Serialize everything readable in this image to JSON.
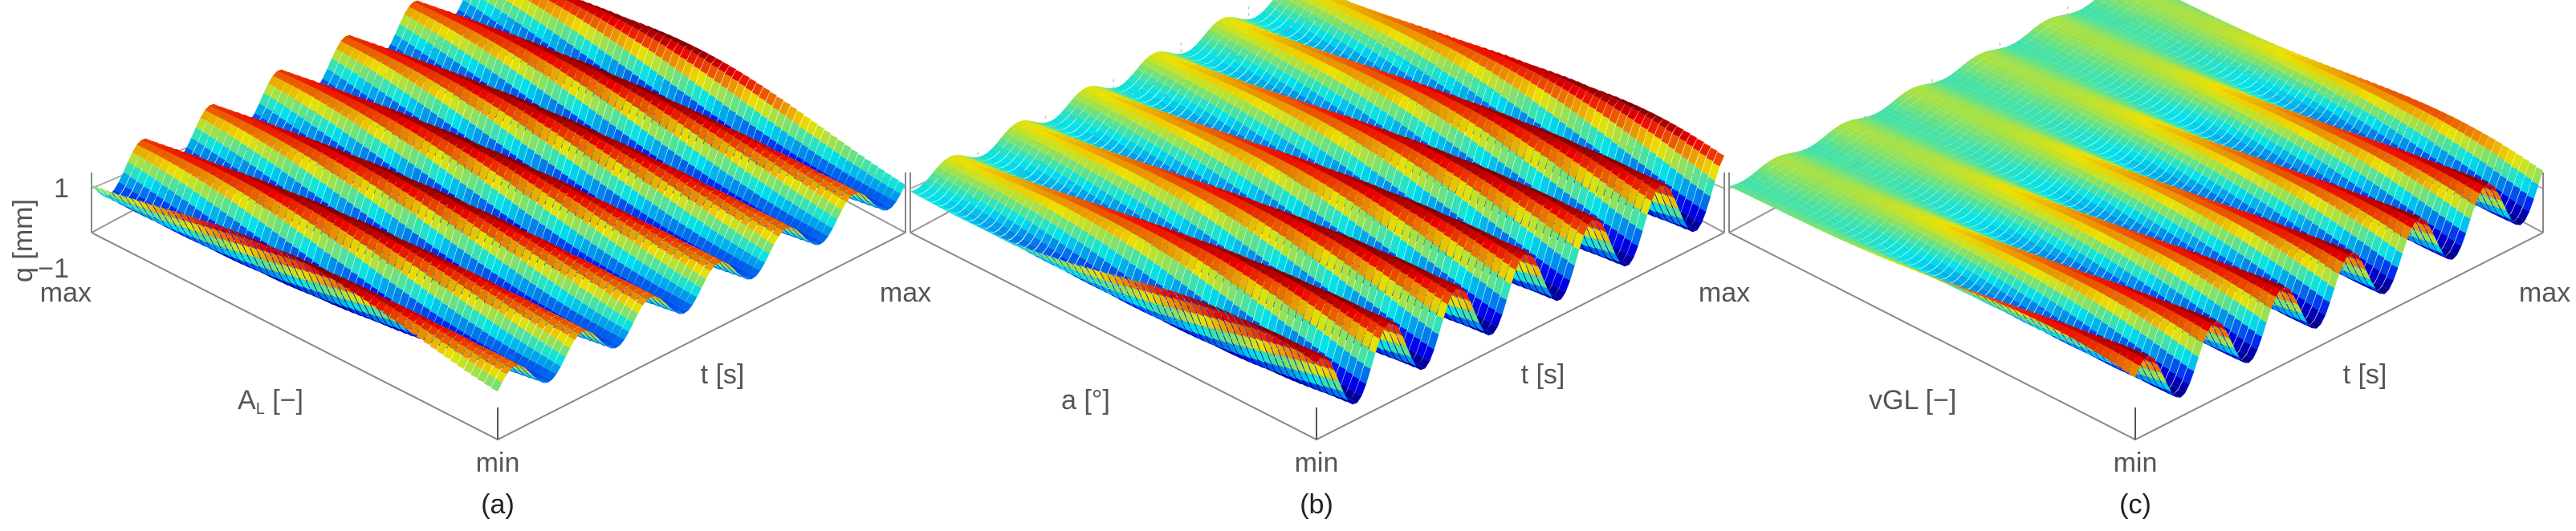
{
  "chart_data": [
    {
      "type": "surface",
      "caption": "(a)",
      "zlabel": "q [mm]",
      "zticks": [
        "1",
        "−1"
      ],
      "zlim": [
        -1,
        1
      ],
      "ylabel_main": "A",
      "ylabel_sub": "L",
      "ylabel_tail": " [−]",
      "xlabel": "t [s]",
      "y_min_label": "min",
      "y_max_label": "max",
      "x_max_label": "max",
      "colormap": "jet",
      "waves": 6,
      "grid": true
    },
    {
      "type": "surface",
      "caption": "(b)",
      "ylabel_main": "a [°]",
      "ylabel_sub": "",
      "ylabel_tail": "",
      "xlabel": "t [s]",
      "y_min_label": "min",
      "x_max_label": "max",
      "colormap": "jet",
      "waves": 6,
      "grid": true
    },
    {
      "type": "surface",
      "caption": "(c)",
      "ylabel_main": "vGL [−]",
      "ylabel_sub": "",
      "ylabel_tail": "",
      "xlabel": "t [s]",
      "y_min_label": "min",
      "x_max_label": "max",
      "colormap": "jet",
      "waves": 6,
      "grid": true
    }
  ]
}
